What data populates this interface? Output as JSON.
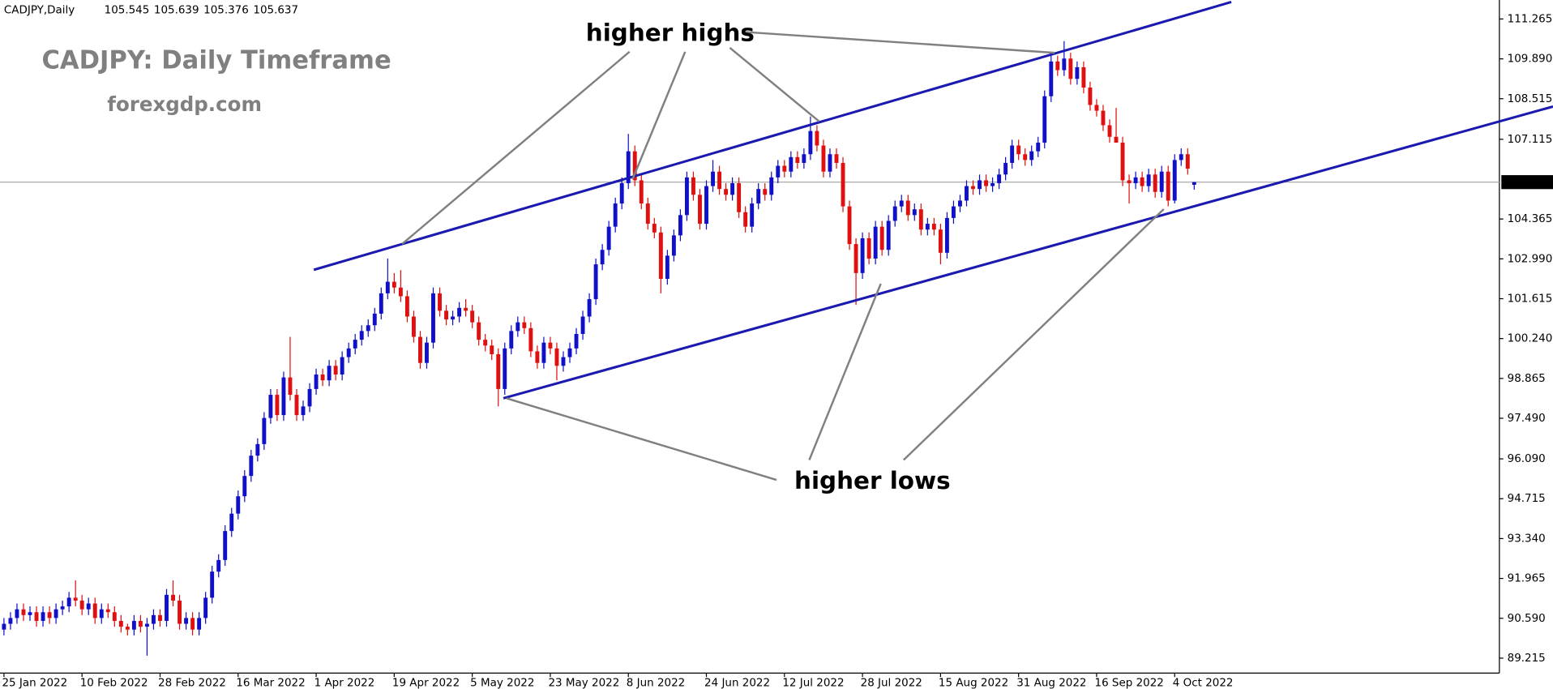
{
  "header": {
    "symbol": "CADJPY,Daily"
  },
  "chart_data": {
    "type": "candlestick",
    "title": "CADJPY: Daily Timeframe",
    "subtitle": "forexgdp.com",
    "annotations": [
      "higher highs",
      "higher lows"
    ],
    "up_color": "#1010c8",
    "down_color": "#e01010",
    "last_price_line": true,
    "ylim": [
      88.7,
      111.92
    ],
    "yticks": [
      {
        "value": 111.265,
        "label": "111.265"
      },
      {
        "value": 109.89,
        "label": "109.890"
      },
      {
        "value": 108.515,
        "label": "108.515"
      },
      {
        "value": 107.115,
        "label": "107.115"
      },
      {
        "value": 104.365,
        "label": "104.365"
      },
      {
        "value": 102.99,
        "label": "102.990"
      },
      {
        "value": 101.615,
        "label": "101.615"
      },
      {
        "value": 100.24,
        "label": "100.240"
      },
      {
        "value": 98.865,
        "label": "98.865"
      },
      {
        "value": 97.49,
        "label": "97.490"
      },
      {
        "value": 96.09,
        "label": "96.090"
      },
      {
        "value": 94.715,
        "label": "94.715"
      },
      {
        "value": 93.34,
        "label": "93.340"
      },
      {
        "value": 91.965,
        "label": "91.965"
      },
      {
        "value": 90.59,
        "label": "90.590"
      },
      {
        "value": 89.215,
        "label": "89.215"
      }
    ],
    "categories": [
      "25 Jan 2022",
      null,
      null,
      null,
      null,
      null,
      null,
      null,
      null,
      null,
      null,
      null,
      "10 Feb 2022",
      null,
      null,
      null,
      null,
      null,
      null,
      null,
      null,
      null,
      null,
      null,
      "28 Feb 2022",
      null,
      null,
      null,
      null,
      null,
      null,
      null,
      null,
      null,
      null,
      null,
      "16 Mar 2022",
      null,
      null,
      null,
      null,
      null,
      null,
      null,
      null,
      null,
      null,
      null,
      "1 Apr 2022",
      null,
      null,
      null,
      null,
      null,
      null,
      null,
      null,
      null,
      null,
      null,
      "19 Apr 2022",
      null,
      null,
      null,
      null,
      null,
      null,
      null,
      null,
      null,
      null,
      null,
      "5 May 2022",
      null,
      null,
      null,
      null,
      null,
      null,
      null,
      null,
      null,
      null,
      null,
      "23 May 2022",
      null,
      null,
      null,
      null,
      null,
      null,
      null,
      null,
      null,
      null,
      null,
      "8 Jun 2022",
      null,
      null,
      null,
      null,
      null,
      null,
      null,
      null,
      null,
      null,
      null,
      "24 Jun 2022",
      null,
      null,
      null,
      null,
      null,
      null,
      null,
      null,
      null,
      null,
      null,
      "12 Jul 2022",
      null,
      null,
      null,
      null,
      null,
      null,
      null,
      null,
      null,
      null,
      null,
      "28 Jul 2022",
      null,
      null,
      null,
      null,
      null,
      null,
      null,
      null,
      null,
      null,
      null,
      "15 Aug 2022",
      null,
      null,
      null,
      null,
      null,
      null,
      null,
      null,
      null,
      null,
      null,
      "31 Aug 2022",
      null,
      null,
      null,
      null,
      null,
      null,
      null,
      null,
      null,
      null,
      null,
      "16 Sep 2022",
      null,
      null,
      null,
      null,
      null,
      null,
      null,
      null,
      null,
      null,
      null,
      "4 Oct 2022",
      null,
      null,
      null
    ],
    "candles": [
      [
        90.2,
        90.6,
        90.0,
        90.4
      ],
      [
        90.4,
        90.8,
        90.2,
        90.6
      ],
      [
        90.6,
        91.1,
        90.4,
        90.9
      ],
      [
        90.9,
        91.1,
        90.5,
        90.7
      ],
      [
        90.7,
        91.0,
        90.5,
        90.8
      ],
      [
        90.8,
        91.0,
        90.3,
        90.5
      ],
      [
        90.5,
        91.0,
        90.3,
        90.8
      ],
      [
        90.8,
        91.0,
        90.4,
        90.6
      ],
      [
        90.6,
        91.1,
        90.4,
        90.9
      ],
      [
        90.9,
        91.2,
        90.7,
        91.0
      ],
      [
        91.0,
        91.5,
        90.8,
        91.3
      ],
      [
        91.3,
        91.9,
        91.0,
        91.2
      ],
      [
        91.2,
        91.4,
        90.7,
        90.9
      ],
      [
        90.9,
        91.3,
        90.7,
        91.1
      ],
      [
        91.1,
        91.3,
        90.4,
        90.6
      ],
      [
        90.6,
        91.1,
        90.4,
        90.9
      ],
      [
        90.9,
        91.1,
        90.6,
        90.8
      ],
      [
        90.8,
        91.0,
        90.3,
        90.5
      ],
      [
        90.5,
        90.7,
        90.1,
        90.3
      ],
      [
        90.3,
        90.4,
        90.0,
        90.2
      ],
      [
        90.2,
        90.7,
        90.0,
        90.5
      ],
      [
        90.5,
        90.7,
        90.1,
        90.3
      ],
      [
        90.3,
        90.6,
        89.3,
        90.4
      ],
      [
        90.4,
        90.9,
        90.2,
        90.7
      ],
      [
        90.7,
        90.9,
        90.3,
        90.5
      ],
      [
        90.5,
        91.6,
        90.3,
        91.4
      ],
      [
        91.4,
        91.9,
        91.0,
        91.2
      ],
      [
        91.2,
        91.4,
        90.2,
        90.4
      ],
      [
        90.4,
        90.8,
        90.2,
        90.6
      ],
      [
        90.6,
        90.8,
        90.0,
        90.2
      ],
      [
        90.2,
        90.8,
        90.0,
        90.6
      ],
      [
        90.6,
        91.5,
        90.4,
        91.3
      ],
      [
        91.3,
        92.4,
        91.1,
        92.2
      ],
      [
        92.2,
        92.8,
        92.0,
        92.6
      ],
      [
        92.6,
        93.8,
        92.4,
        93.6
      ],
      [
        93.6,
        94.4,
        93.4,
        94.2
      ],
      [
        94.2,
        95.0,
        94.0,
        94.8
      ],
      [
        94.8,
        95.7,
        94.6,
        95.5
      ],
      [
        95.5,
        96.4,
        95.3,
        96.2
      ],
      [
        96.2,
        96.8,
        96.0,
        96.6
      ],
      [
        96.6,
        97.7,
        96.4,
        97.5
      ],
      [
        97.5,
        98.5,
        97.3,
        98.3
      ],
      [
        98.3,
        98.5,
        97.4,
        97.6
      ],
      [
        97.6,
        99.1,
        97.4,
        98.9
      ],
      [
        98.9,
        100.3,
        98.1,
        98.3
      ],
      [
        98.3,
        98.5,
        97.4,
        97.6
      ],
      [
        97.6,
        98.1,
        97.4,
        97.9
      ],
      [
        97.9,
        98.7,
        97.7,
        98.5
      ],
      [
        98.5,
        99.2,
        98.3,
        99.0
      ],
      [
        99.0,
        99.2,
        98.6,
        98.8
      ],
      [
        98.8,
        99.5,
        98.6,
        99.3
      ],
      [
        99.3,
        99.5,
        98.8,
        99.0
      ],
      [
        99.0,
        99.8,
        98.8,
        99.6
      ],
      [
        99.6,
        100.1,
        99.4,
        99.9
      ],
      [
        99.9,
        100.4,
        99.7,
        100.2
      ],
      [
        100.2,
        100.7,
        100.0,
        100.5
      ],
      [
        100.5,
        100.9,
        100.3,
        100.7
      ],
      [
        100.7,
        101.3,
        100.5,
        101.1
      ],
      [
        101.1,
        102.0,
        100.9,
        101.8
      ],
      [
        101.8,
        103.0,
        101.6,
        102.2
      ],
      [
        102.2,
        102.5,
        101.8,
        102.0
      ],
      [
        102.0,
        102.6,
        101.5,
        101.7
      ],
      [
        101.7,
        101.9,
        100.8,
        101.0
      ],
      [
        101.0,
        101.2,
        100.1,
        100.3
      ],
      [
        100.3,
        100.5,
        99.2,
        99.4
      ],
      [
        99.4,
        100.3,
        99.2,
        100.1
      ],
      [
        100.1,
        102.0,
        99.9,
        101.8
      ],
      [
        101.8,
        102.0,
        101.0,
        101.2
      ],
      [
        101.2,
        101.4,
        100.7,
        100.9
      ],
      [
        100.9,
        101.2,
        100.7,
        101.0
      ],
      [
        101.0,
        101.5,
        100.8,
        101.3
      ],
      [
        101.3,
        101.6,
        101.0,
        101.2
      ],
      [
        101.2,
        101.4,
        100.6,
        100.8
      ],
      [
        100.8,
        101.0,
        100.0,
        100.2
      ],
      [
        100.2,
        100.4,
        99.8,
        100.0
      ],
      [
        100.0,
        100.2,
        99.5,
        99.7
      ],
      [
        99.7,
        99.9,
        97.9,
        98.5
      ],
      [
        98.5,
        100.1,
        98.3,
        99.9
      ],
      [
        99.9,
        100.7,
        99.7,
        100.5
      ],
      [
        100.5,
        101.0,
        100.3,
        100.8
      ],
      [
        100.8,
        101.0,
        100.4,
        100.6
      ],
      [
        100.6,
        100.8,
        99.6,
        99.8
      ],
      [
        99.8,
        100.0,
        99.2,
        99.4
      ],
      [
        99.4,
        100.3,
        99.2,
        100.1
      ],
      [
        100.1,
        100.3,
        99.7,
        99.9
      ],
      [
        99.9,
        100.1,
        98.8,
        99.3
      ],
      [
        99.3,
        99.8,
        99.1,
        99.6
      ],
      [
        99.6,
        100.1,
        99.4,
        99.9
      ],
      [
        99.9,
        100.6,
        99.7,
        100.4
      ],
      [
        100.4,
        101.2,
        100.2,
        101.0
      ],
      [
        101.0,
        101.8,
        100.8,
        101.6
      ],
      [
        101.6,
        103.0,
        101.4,
        102.8
      ],
      [
        102.8,
        103.5,
        102.6,
        103.3
      ],
      [
        103.3,
        104.3,
        103.1,
        104.1
      ],
      [
        104.1,
        105.1,
        103.9,
        104.9
      ],
      [
        104.9,
        105.8,
        104.7,
        105.6
      ],
      [
        105.6,
        107.3,
        105.4,
        106.7
      ],
      [
        106.7,
        106.9,
        105.5,
        105.7
      ],
      [
        105.7,
        105.9,
        104.7,
        104.9
      ],
      [
        104.9,
        105.1,
        104.0,
        104.2
      ],
      [
        104.2,
        104.4,
        103.7,
        103.9
      ],
      [
        103.9,
        104.1,
        101.8,
        102.3
      ],
      [
        102.3,
        103.3,
        102.1,
        103.1
      ],
      [
        103.1,
        104.0,
        102.9,
        103.8
      ],
      [
        103.8,
        104.7,
        103.6,
        104.5
      ],
      [
        104.5,
        106.0,
        104.3,
        105.8
      ],
      [
        105.8,
        106.0,
        105.0,
        105.2
      ],
      [
        105.2,
        105.4,
        104.0,
        104.2
      ],
      [
        104.2,
        105.7,
        104.0,
        105.5
      ],
      [
        105.5,
        106.4,
        105.3,
        106.0
      ],
      [
        106.0,
        106.2,
        105.2,
        105.4
      ],
      [
        105.4,
        105.6,
        105.0,
        105.2
      ],
      [
        105.2,
        105.8,
        105.0,
        105.6
      ],
      [
        105.6,
        105.8,
        104.4,
        104.6
      ],
      [
        104.6,
        104.8,
        103.9,
        104.1
      ],
      [
        104.1,
        105.1,
        103.9,
        104.9
      ],
      [
        104.9,
        105.6,
        104.7,
        105.4
      ],
      [
        105.4,
        105.6,
        105.0,
        105.2
      ],
      [
        105.2,
        106.0,
        105.0,
        105.8
      ],
      [
        105.8,
        106.4,
        105.6,
        106.2
      ],
      [
        106.2,
        106.4,
        105.8,
        106.0
      ],
      [
        106.0,
        106.7,
        105.8,
        106.5
      ],
      [
        106.5,
        106.7,
        106.1,
        106.3
      ],
      [
        106.3,
        106.8,
        106.1,
        106.6
      ],
      [
        106.6,
        107.9,
        106.4,
        107.4
      ],
      [
        107.4,
        107.6,
        106.7,
        106.9
      ],
      [
        106.9,
        107.1,
        105.8,
        106.0
      ],
      [
        106.0,
        106.8,
        105.8,
        106.6
      ],
      [
        106.6,
        106.8,
        106.1,
        106.3
      ],
      [
        106.3,
        106.5,
        104.6,
        104.8
      ],
      [
        104.8,
        105.0,
        103.3,
        103.5
      ],
      [
        103.5,
        103.7,
        101.4,
        102.5
      ],
      [
        102.5,
        103.9,
        102.3,
        103.7
      ],
      [
        103.7,
        103.9,
        102.8,
        103.0
      ],
      [
        103.0,
        104.3,
        102.8,
        104.1
      ],
      [
        104.1,
        104.3,
        103.1,
        103.3
      ],
      [
        103.3,
        104.5,
        103.1,
        104.3
      ],
      [
        104.3,
        105.0,
        104.1,
        104.8
      ],
      [
        104.8,
        105.2,
        104.6,
        105.0
      ],
      [
        105.0,
        105.2,
        104.3,
        104.5
      ],
      [
        104.5,
        104.9,
        104.3,
        104.7
      ],
      [
        104.7,
        104.9,
        103.8,
        104.0
      ],
      [
        104.0,
        104.4,
        103.8,
        104.2
      ],
      [
        104.2,
        104.4,
        103.8,
        104.0
      ],
      [
        104.0,
        104.2,
        102.8,
        103.2
      ],
      [
        103.2,
        104.6,
        103.0,
        104.4
      ],
      [
        104.4,
        105.0,
        104.2,
        104.8
      ],
      [
        104.8,
        105.2,
        104.6,
        105.0
      ],
      [
        105.0,
        105.7,
        104.8,
        105.5
      ],
      [
        105.5,
        105.7,
        105.2,
        105.4
      ],
      [
        105.4,
        105.9,
        105.2,
        105.7
      ],
      [
        105.7,
        105.9,
        105.3,
        105.5
      ],
      [
        105.5,
        105.8,
        105.3,
        105.6
      ],
      [
        105.6,
        106.1,
        105.4,
        105.9
      ],
      [
        105.9,
        106.5,
        105.7,
        106.3
      ],
      [
        106.3,
        107.1,
        106.1,
        106.9
      ],
      [
        106.9,
        107.1,
        106.4,
        106.6
      ],
      [
        106.6,
        106.8,
        106.2,
        106.4
      ],
      [
        106.4,
        106.9,
        106.2,
        106.7
      ],
      [
        106.7,
        107.2,
        106.5,
        107.0
      ],
      [
        107.0,
        108.8,
        106.8,
        108.6
      ],
      [
        108.6,
        110.0,
        108.4,
        109.8
      ],
      [
        109.8,
        110.0,
        109.3,
        109.5
      ],
      [
        109.5,
        110.5,
        109.3,
        109.9
      ],
      [
        109.9,
        110.1,
        109.0,
        109.2
      ],
      [
        109.2,
        109.8,
        109.0,
        109.6
      ],
      [
        109.6,
        109.8,
        108.7,
        108.9
      ],
      [
        108.9,
        109.1,
        108.1,
        108.3
      ],
      [
        108.3,
        108.5,
        107.9,
        108.1
      ],
      [
        108.1,
        108.3,
        107.4,
        107.6
      ],
      [
        107.6,
        107.8,
        107.0,
        107.2
      ],
      [
        107.2,
        108.2,
        107.0,
        107.0
      ],
      [
        107.0,
        107.2,
        105.5,
        105.7
      ],
      [
        105.7,
        105.9,
        104.9,
        105.6
      ],
      [
        105.6,
        106.0,
        105.4,
        105.8
      ],
      [
        105.8,
        106.0,
        105.3,
        105.5
      ],
      [
        105.5,
        106.1,
        105.3,
        105.9
      ],
      [
        105.9,
        106.1,
        105.1,
        105.3
      ],
      [
        105.3,
        106.2,
        105.1,
        106.0
      ],
      [
        106.0,
        106.2,
        104.8,
        105.0
      ],
      [
        105.0,
        106.6,
        104.9,
        106.4
      ],
      [
        106.4,
        106.8,
        106.2,
        106.6
      ],
      [
        106.6,
        106.8,
        105.9,
        106.1
      ],
      [
        105.545,
        105.639,
        105.376,
        105.637
      ]
    ]
  }
}
